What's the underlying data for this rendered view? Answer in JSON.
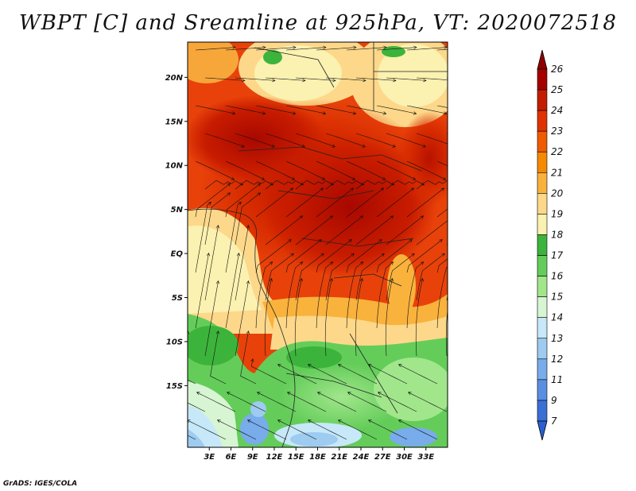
{
  "title": "WBPT [C] and Sreamline at 925hPa, VT: 2020072518",
  "credit": "GrADS: IGES/COLA",
  "map": {
    "lat_range": [
      -22,
      24
    ],
    "lon_range": [
      0,
      36
    ],
    "lat_ticks": [
      {
        "value": 20,
        "label": "20N"
      },
      {
        "value": 15,
        "label": "15N"
      },
      {
        "value": 10,
        "label": "10N"
      },
      {
        "value": 5,
        "label": "5N"
      },
      {
        "value": 0,
        "label": "EQ"
      },
      {
        "value": -5,
        "label": "5S"
      },
      {
        "value": -10,
        "label": "10S"
      },
      {
        "value": -15,
        "label": "15S"
      }
    ],
    "lon_ticks": [
      {
        "value": 3,
        "label": "3E"
      },
      {
        "value": 6,
        "label": "6E"
      },
      {
        "value": 9,
        "label": "9E"
      },
      {
        "value": 12,
        "label": "12E"
      },
      {
        "value": 15,
        "label": "15E"
      },
      {
        "value": 18,
        "label": "18E"
      },
      {
        "value": 21,
        "label": "21E"
      },
      {
        "value": 24,
        "label": "24E"
      },
      {
        "value": 27,
        "label": "27E"
      },
      {
        "value": 30,
        "label": "30E"
      },
      {
        "value": 33,
        "label": "33E"
      }
    ]
  },
  "colorbar": {
    "labels": [
      "26",
      "25",
      "24",
      "23",
      "22",
      "21",
      "20",
      "19",
      "18",
      "17",
      "16",
      "15",
      "14",
      "13",
      "12",
      "11",
      "9",
      "7"
    ],
    "colors": [
      "#a50000",
      "#c41c00",
      "#e03200",
      "#f05a00",
      "#f58a00",
      "#f9b23c",
      "#fdd88a",
      "#fbf1b0",
      "#3cb43c",
      "#64cd5a",
      "#a2e68c",
      "#d7f5d2",
      "#c6e8f8",
      "#9ecbf0",
      "#78acea",
      "#5a8ee2",
      "#3a6fd6"
    ],
    "top_color": "#8c0000",
    "bottom_color": "#2a5fd0"
  }
}
